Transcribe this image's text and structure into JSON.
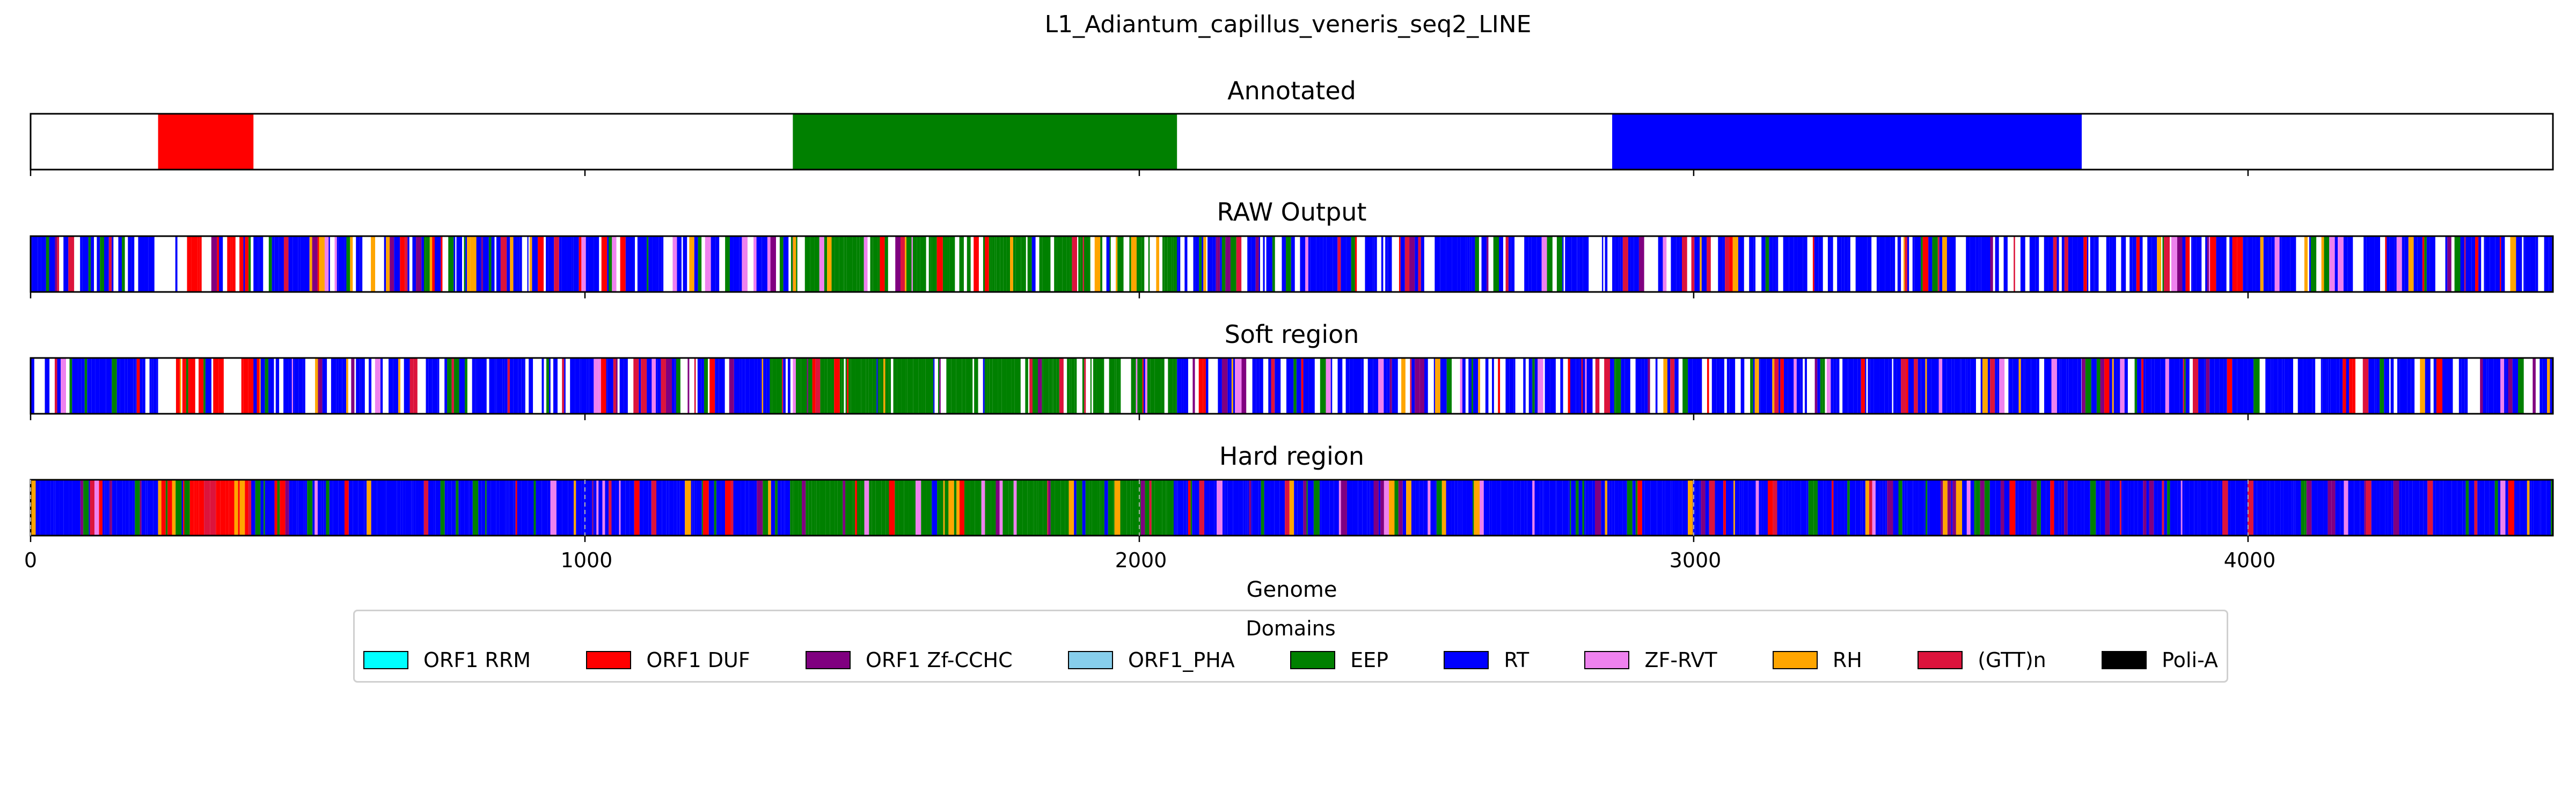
{
  "chart_data": {
    "type": "bar",
    "title": "L1_Adiantum_capillus_veneris_seq2_LINE",
    "xlabel": "Genome",
    "xlim": [
      0,
      4550
    ],
    "xticks": [
      0,
      1000,
      2000,
      3000,
      4000
    ],
    "xtick_labels": [
      "0",
      "1000",
      "2000",
      "3000",
      "4000"
    ],
    "grid_x": "dashed, Hard region only",
    "legend": {
      "title": "Domains",
      "placement": "below",
      "entries": [
        {
          "name": "ORF1 RRM",
          "color": "#00ffff"
        },
        {
          "name": "ORF1 DUF",
          "color": "#ff0000"
        },
        {
          "name": "ORF1 Zf-CCHC",
          "color": "#800080"
        },
        {
          "name": "ORF1_PHA",
          "color": "#87ceeb"
        },
        {
          "name": "EEP",
          "color": "#008000"
        },
        {
          "name": "RT",
          "color": "#0000ff"
        },
        {
          "name": "ZF-RVT",
          "color": "#ee82ee"
        },
        {
          "name": "RH",
          "color": "#ffa500"
        },
        {
          "name": "(GTT)n",
          "color": "#dc143c"
        },
        {
          "name": "Poli-A",
          "color": "#000000"
        }
      ]
    },
    "panels": [
      {
        "title": "Annotated",
        "segments": [
          {
            "domain": "ORF1 DUF",
            "start": 230,
            "end": 402
          },
          {
            "domain": "EEP",
            "start": 1375,
            "end": 2068
          },
          {
            "domain": "RT",
            "start": 2853,
            "end": 3700
          }
        ]
      },
      {
        "title": "RAW Output",
        "dominant": [
          {
            "domain": "RT",
            "start": 0,
            "end": 230,
            "white_gaps": 0.22
          },
          {
            "domain": "ORF1 DUF",
            "start": 230,
            "end": 402,
            "white_gaps": 0.42
          },
          {
            "domain": "RT",
            "start": 402,
            "end": 1375,
            "white_gaps": 0.26
          },
          {
            "domain": "EEP",
            "start": 1375,
            "end": 2068,
            "white_gaps": 0.2
          },
          {
            "domain": "RT",
            "start": 2068,
            "end": 2853,
            "white_gaps": 0.26
          },
          {
            "domain": "RT",
            "start": 2853,
            "end": 3700,
            "white_gaps": 0.2
          },
          {
            "domain": "RT",
            "start": 3700,
            "end": 4550,
            "white_gaps": 0.24
          }
        ]
      },
      {
        "title": "Soft region",
        "dominant": [
          {
            "domain": "RT",
            "start": 0,
            "end": 230,
            "white_gaps": 0.18
          },
          {
            "domain": "ORF1 DUF",
            "start": 230,
            "end": 402,
            "white_gaps": 0.38
          },
          {
            "domain": "RT",
            "start": 402,
            "end": 1375,
            "white_gaps": 0.22
          },
          {
            "domain": "EEP",
            "start": 1375,
            "end": 2068,
            "white_gaps": 0.16
          },
          {
            "domain": "RT",
            "start": 2068,
            "end": 2853,
            "white_gaps": 0.22
          },
          {
            "domain": "RT",
            "start": 2853,
            "end": 3700,
            "white_gaps": 0.16
          },
          {
            "domain": "RT",
            "start": 3700,
            "end": 4550,
            "white_gaps": 0.2
          }
        ]
      },
      {
        "title": "Hard region",
        "dominant": [
          {
            "domain": "RT",
            "start": 0,
            "end": 230,
            "white_gaps": 0
          },
          {
            "domain": "ORF1 DUF",
            "start": 230,
            "end": 398,
            "white_gaps": 0
          },
          {
            "domain": "RT",
            "start": 398,
            "end": 1370,
            "white_gaps": 0
          },
          {
            "domain": "EEP",
            "start": 1370,
            "end": 2062,
            "white_gaps": 0
          },
          {
            "domain": "RT",
            "start": 2062,
            "end": 2853,
            "white_gaps": 0
          },
          {
            "domain": "RT",
            "start": 2853,
            "end": 3700,
            "white_gaps": 0
          },
          {
            "domain": "RT",
            "start": 3700,
            "end": 4550,
            "white_gaps": 0
          }
        ]
      }
    ]
  }
}
